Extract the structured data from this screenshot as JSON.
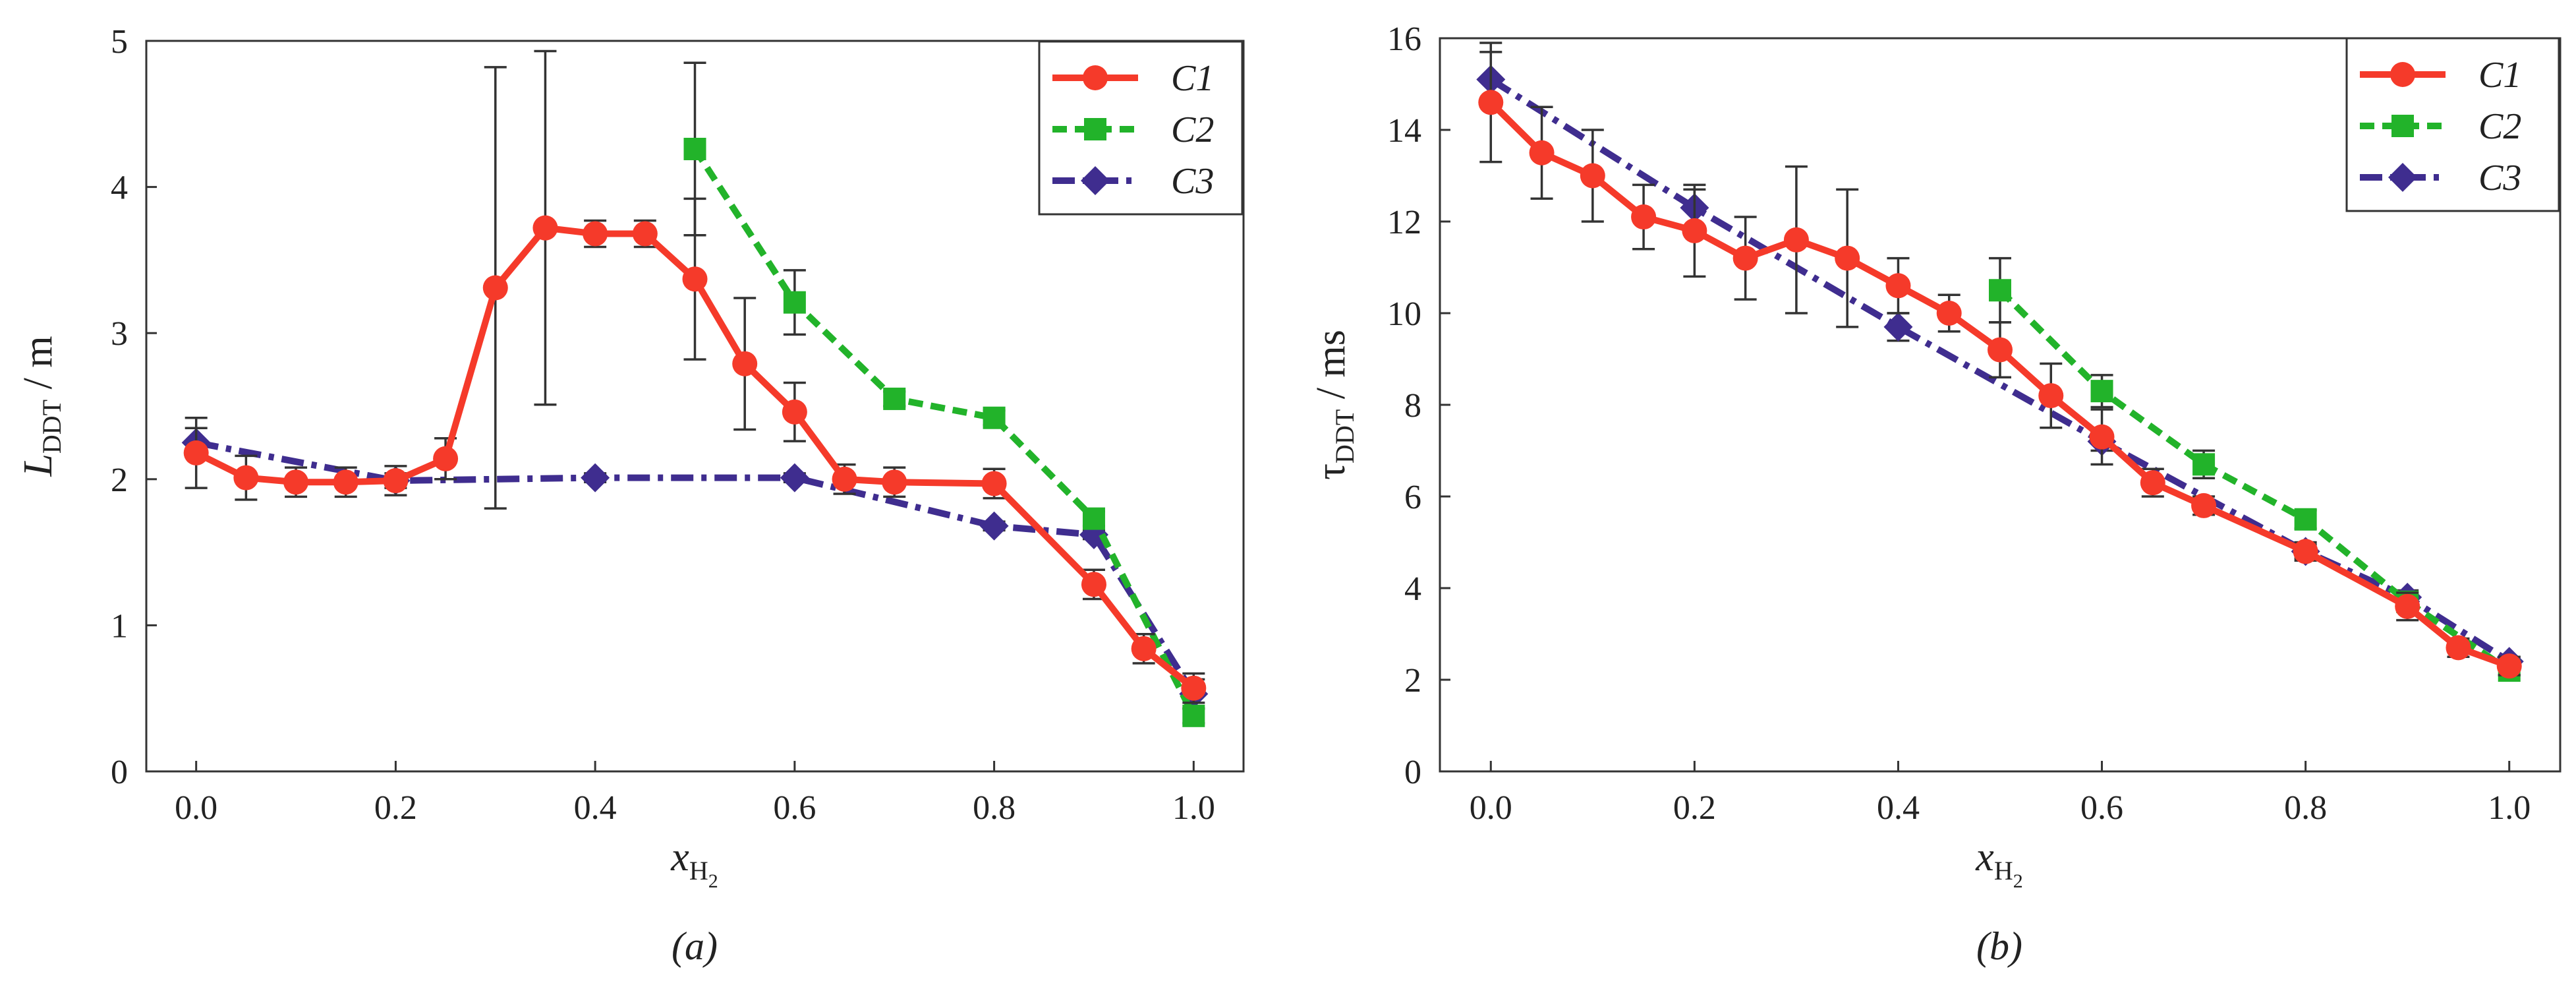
{
  "figure": {
    "colors": {
      "C1": "#f53a2a",
      "C2": "#22b32a",
      "C3": "#3f2d8f",
      "axis": "#333333"
    }
  },
  "chart_data": [
    {
      "id": "a",
      "type": "line",
      "caption": "(a)",
      "xlabel": {
        "main": "x",
        "sub": "H",
        "subsub": "2"
      },
      "ylabel": {
        "main": "L",
        "sub": "DDT",
        "unit": " / m"
      },
      "xlim": [
        -0.05,
        1.05
      ],
      "ylim": [
        0,
        5
      ],
      "xticks": [
        0.0,
        0.2,
        0.4,
        0.6,
        0.8,
        1.0
      ],
      "xtick_labels": [
        "0.0",
        "0.2",
        "0.4",
        "0.6",
        "0.8",
        "1.0"
      ],
      "yticks": [
        0,
        1,
        2,
        3,
        4,
        5
      ],
      "ytick_labels": [
        "0",
        "1",
        "2",
        "3",
        "4",
        "5"
      ],
      "legend": {
        "position": "top-right",
        "entries": [
          "C1",
          "C2",
          "C3"
        ]
      },
      "series": [
        {
          "name": "C1",
          "style": "solid",
          "marker": "circle",
          "x": [
            0.0,
            0.05,
            0.1,
            0.15,
            0.2,
            0.25,
            0.3,
            0.35,
            0.4,
            0.45,
            0.5,
            0.55,
            0.6,
            0.65,
            0.7,
            0.8,
            0.9,
            0.95,
            1.0
          ],
          "y": [
            2.18,
            2.01,
            1.98,
            1.98,
            1.99,
            2.14,
            3.31,
            3.72,
            3.68,
            3.68,
            3.37,
            2.79,
            2.46,
            2.0,
            1.98,
            1.97,
            1.28,
            0.84,
            0.57
          ],
          "err": [
            0.24,
            0.15,
            0.1,
            0.1,
            0.1,
            0.14,
            1.51,
            1.21,
            0.09,
            0.09,
            0.55,
            0.45,
            0.2,
            0.1,
            0.1,
            0.1,
            0.1,
            0.1,
            0.1
          ]
        },
        {
          "name": "C2",
          "style": "dashed",
          "marker": "square",
          "x": [
            0.5,
            0.6,
            0.7,
            0.8,
            0.9,
            1.0
          ],
          "y": [
            4.26,
            3.21,
            2.55,
            2.42,
            1.73,
            0.38
          ],
          "err": [
            0.59,
            0.22,
            0.05,
            0.05,
            0.05,
            0.05
          ]
        },
        {
          "name": "C3",
          "style": "dashdot",
          "marker": "diamond",
          "x": [
            0.0,
            0.2,
            0.4,
            0.6,
            0.8,
            0.9,
            1.0
          ],
          "y": [
            2.25,
            1.99,
            2.01,
            2.01,
            1.68,
            1.62,
            0.53
          ],
          "err": [
            0.1,
            0.05,
            0.03,
            0.03,
            0.03,
            0.03,
            0.1
          ]
        }
      ]
    },
    {
      "id": "b",
      "type": "line",
      "caption": "(b)",
      "xlabel": {
        "main": "x",
        "sub": "H",
        "subsub": "2"
      },
      "ylabel": {
        "main": "τ",
        "sub": "DDT",
        "unit": " / ms"
      },
      "xlim": [
        -0.05,
        1.05
      ],
      "ylim": [
        0,
        16
      ],
      "xticks": [
        0.0,
        0.2,
        0.4,
        0.6,
        0.8,
        1.0
      ],
      "xtick_labels": [
        "0.0",
        "0.2",
        "0.4",
        "0.6",
        "0.8",
        "1.0"
      ],
      "yticks": [
        0,
        2,
        4,
        6,
        8,
        10,
        12,
        14,
        16
      ],
      "ytick_labels": [
        "0",
        "2",
        "4",
        "6",
        "8",
        "10",
        "12",
        "14",
        "16"
      ],
      "legend": {
        "position": "top-right",
        "entries": [
          "C1",
          "C2",
          "C3"
        ]
      },
      "series": [
        {
          "name": "C1",
          "style": "solid",
          "marker": "circle",
          "x": [
            0.0,
            0.05,
            0.1,
            0.15,
            0.2,
            0.25,
            0.3,
            0.35,
            0.4,
            0.45,
            0.5,
            0.55,
            0.6,
            0.65,
            0.7,
            0.8,
            0.9,
            0.95,
            1.0
          ],
          "y": [
            14.6,
            13.5,
            13.0,
            12.1,
            11.8,
            11.2,
            11.6,
            11.2,
            10.6,
            10.0,
            9.2,
            8.2,
            7.3,
            6.3,
            5.8,
            4.8,
            3.6,
            2.7,
            2.3
          ],
          "err": [
            1.3,
            1.0,
            1.0,
            0.7,
            1.0,
            0.9,
            1.6,
            1.5,
            0.6,
            0.4,
            0.6,
            0.7,
            0.6,
            0.3,
            0.2,
            0.2,
            0.3,
            0.2,
            0.2
          ]
        },
        {
          "name": "C2",
          "style": "dashed",
          "marker": "square",
          "x": [
            0.5,
            0.6,
            0.7,
            0.8,
            0.9,
            1.0
          ],
          "y": [
            10.5,
            8.3,
            6.7,
            5.5,
            3.7,
            2.2
          ],
          "err": [
            0.7,
            0.35,
            0.3,
            0.2,
            0.2,
            0.1
          ]
        },
        {
          "name": "C3",
          "style": "dashdot",
          "marker": "diamond",
          "x": [
            0.0,
            0.2,
            0.4,
            0.6,
            0.8,
            0.9,
            1.0
          ],
          "y": [
            15.1,
            12.3,
            9.7,
            7.2,
            4.8,
            3.8,
            2.4
          ],
          "err": [
            0.6,
            0.4,
            0.3,
            0.2,
            0.15,
            0.15,
            0.1
          ]
        }
      ]
    }
  ]
}
